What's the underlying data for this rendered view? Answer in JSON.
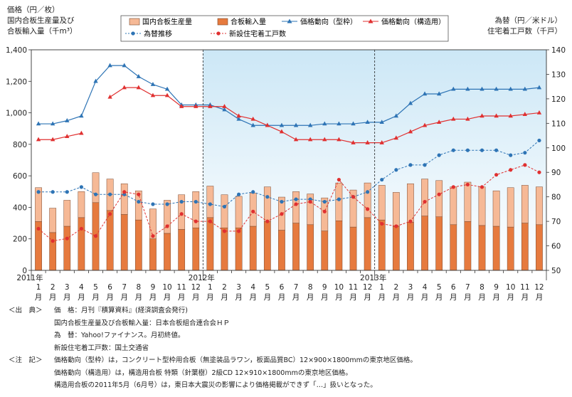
{
  "chart_data": {
    "type": "bar+line",
    "left_axis_title": [
      "価格（円／枚）",
      "国内合板生産量及び",
      "合板輸入量（千m³）"
    ],
    "right_axis_title": [
      "為替（円／米ドル）",
      "住宅着工戸数（千戸）"
    ],
    "left_ticks": [
      "0",
      "200",
      "400",
      "600",
      "800",
      "1,000",
      "1,200",
      "1,400"
    ],
    "right_ticks": [
      "50",
      "60",
      "70",
      "80",
      "90",
      "100",
      "110",
      "120",
      "130",
      "140"
    ],
    "ylim_left": [
      0,
      1400
    ],
    "ylim_right": [
      50,
      140
    ],
    "year_labels": [
      "2011年",
      "2012年",
      "2013年"
    ],
    "month_labels": [
      "1",
      "2",
      "3",
      "4",
      "5",
      "6",
      "7",
      "8",
      "9",
      "10",
      "11",
      "12",
      "1",
      "2",
      "3",
      "4",
      "5",
      "6",
      "7",
      "8",
      "9",
      "10",
      "11",
      "12",
      "1",
      "2",
      "3",
      "4",
      "5",
      "6",
      "7",
      "8",
      "9",
      "10",
      "11",
      "12"
    ],
    "month_suffix": "月",
    "legend": {
      "domestic": "国内合板生産量",
      "import": "合板輸入量",
      "price_form": "価格動向（型枠）",
      "price_struct": "価格動向（構造用）",
      "fx": "為替推移",
      "housing": "新設住宅着工戸数"
    },
    "colors": {
      "domestic": "#f6b996",
      "import": "#e67a3e",
      "bar_edge": "#7a4a30",
      "price_form": "#2e74b5",
      "price_struct": "#e03030",
      "fx": "#2e74b5",
      "housing": "#e03030",
      "bg_blue": "#cce7f6"
    },
    "series": [
      {
        "name": "合板輸入量",
        "axis": "left",
        "kind": "bar-stack-bottom",
        "values": [
          310,
          240,
          280,
          335,
          430,
          380,
          355,
          320,
          200,
          235,
          260,
          270,
          335,
          270,
          270,
          280,
          310,
          255,
          300,
          290,
          250,
          315,
          275,
          335,
          320,
          280,
          305,
          345,
          340,
          290,
          310,
          285,
          280,
          275,
          300,
          290
        ]
      },
      {
        "name": "国内合板生産量",
        "axis": "left",
        "kind": "bar-stack-top",
        "values": [
          215,
          155,
          165,
          165,
          190,
          200,
          195,
          185,
          190,
          210,
          220,
          230,
          200,
          210,
          200,
          210,
          220,
          210,
          200,
          195,
          210,
          240,
          235,
          220,
          220,
          215,
          245,
          235,
          230,
          240,
          250,
          245,
          225,
          250,
          240,
          240
        ]
      },
      {
        "name": "価格動向（型枠）",
        "axis": "left",
        "kind": "line",
        "values": [
          930,
          930,
          950,
          980,
          1200,
          1300,
          1300,
          1230,
          1180,
          1150,
          1050,
          1050,
          1050,
          1020,
          960,
          920,
          920,
          920,
          920,
          920,
          930,
          930,
          930,
          940,
          940,
          980,
          1060,
          1120,
          1120,
          1150,
          1150,
          1150,
          1150,
          1150,
          1150,
          1160
        ]
      },
      {
        "name": "価格動向（構造用）",
        "axis": "left",
        "kind": "line",
        "values": [
          830,
          830,
          850,
          870,
          null,
          1100,
          1160,
          1160,
          1110,
          1110,
          1040,
          1040,
          1040,
          1040,
          980,
          960,
          920,
          880,
          830,
          830,
          830,
          830,
          810,
          810,
          810,
          840,
          880,
          920,
          940,
          960,
          960,
          980,
          980,
          980,
          990,
          1000
        ]
      },
      {
        "name": "為替推移",
        "axis": "right",
        "kind": "line-dotted",
        "values": [
          82,
          82,
          82,
          84,
          81,
          81,
          81,
          78,
          77,
          77,
          78,
          78,
          77,
          76,
          81,
          82,
          80,
          78,
          79,
          79,
          78,
          79,
          80,
          82,
          87,
          91,
          93,
          93,
          97,
          99,
          99,
          99,
          99,
          97,
          98,
          103
        ]
      },
      {
        "name": "新設住宅着工戸数",
        "axis": "right",
        "kind": "line-dotted",
        "values": [
          67,
          62,
          63,
          67,
          64,
          73,
          82,
          81,
          64,
          68,
          73,
          70,
          70,
          66,
          66,
          74,
          70,
          73,
          77,
          78,
          74,
          87,
          80,
          75,
          69,
          68,
          70,
          78,
          81,
          84,
          85,
          84,
          89,
          91,
          93,
          90
        ]
      }
    ]
  },
  "notes": [
    {
      "tag": "＜出　典＞",
      "text": "価　格：月刊『積算資料』(経済調査会発行)"
    },
    {
      "tag": "",
      "text": "国内合板生産量及び合板輸入量：日本合板組合連合会ＨＰ"
    },
    {
      "tag": "",
      "text": "為　替：Yahoo!ファイナンス。月初終値。"
    },
    {
      "tag": "",
      "text": "新設住宅着工戸数：国土交通省"
    },
    {
      "tag": "＜注　記＞",
      "text": "価格動向（型枠）は，コンクリート型枠用合板（無塗装品ラワン，板面品質BC）12×900×1800mmの東京地区価格。"
    },
    {
      "tag": "",
      "text": "価格動向（構造用）は，構造用合板 特類（針葉樹）2級CD 12×910×1800mmの東京地区価格。"
    },
    {
      "tag": "",
      "text": "構造用合板の2011年5月（6月号）は，東日本大震災の影響により価格掲載ができず「…」扱いとなった。"
    }
  ]
}
